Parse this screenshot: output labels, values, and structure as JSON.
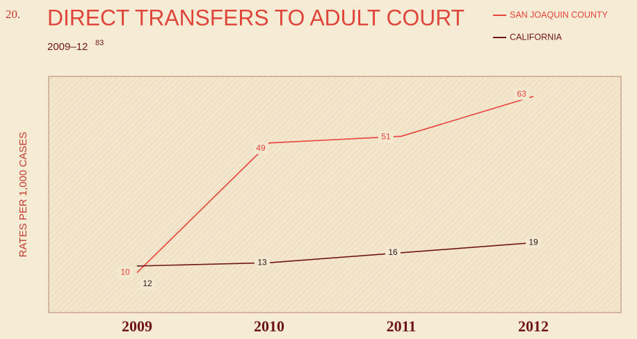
{
  "chart_data": {
    "type": "line",
    "number": "20.",
    "title": "DIRECT TRANSFERS TO ADULT COURT",
    "subtitle": "2009–12",
    "footnote": "83",
    "y_label": "RATES PER 1,000 CASES",
    "categories": [
      "2009",
      "2010",
      "2011",
      "2012"
    ],
    "series": [
      {
        "name": "SAN JOAQUIN COUNTY",
        "color": "#e5403a",
        "values": [
          10,
          49,
          51,
          63
        ]
      },
      {
        "name": "CALIFORNIA",
        "color": "#6e1417",
        "values": [
          12,
          13,
          16,
          19
        ]
      }
    ],
    "ylim": [
      -2,
      69
    ]
  }
}
